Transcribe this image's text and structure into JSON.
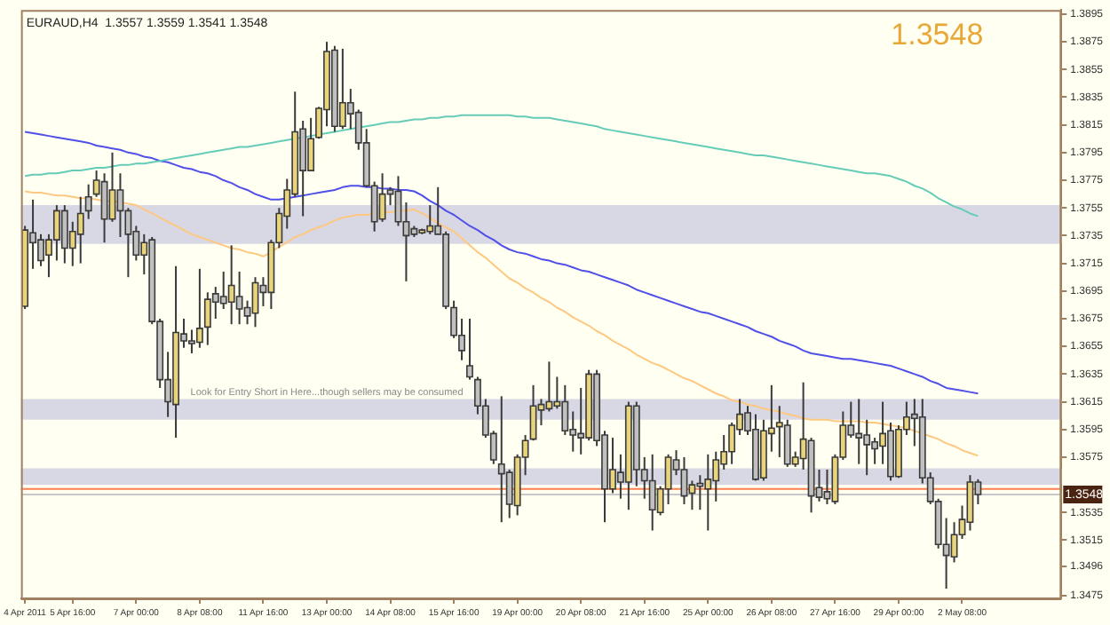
{
  "chart_data": {
    "type": "candlestick",
    "title": "EURAUD,H4  1.3557 1.3559 1.3541 1.3548",
    "categories": [
      "4 Apr 2011",
      null,
      null,
      null,
      null,
      null,
      "5 Apr 16:00",
      null,
      null,
      null,
      null,
      null,
      null,
      null,
      "7 Apr 00:00",
      null,
      null,
      null,
      null,
      null,
      null,
      null,
      "8 Apr 08:00",
      null,
      null,
      null,
      null,
      null,
      null,
      null,
      "11 Apr 16:00",
      null,
      null,
      null,
      null,
      null,
      null,
      null,
      "13 Apr 00:00",
      null,
      null,
      null,
      null,
      null,
      null,
      null,
      "14 Apr 08:00",
      null,
      null,
      null,
      null,
      null,
      null,
      null,
      "15 Apr 16:00",
      null,
      null,
      null,
      null,
      null,
      null,
      null,
      "19 Apr 00:00",
      null,
      null,
      null,
      null,
      null,
      null,
      null,
      "20 Apr 08:00",
      null,
      null,
      null,
      null,
      null,
      null,
      null,
      "21 Apr 16:00",
      null,
      null,
      null,
      null,
      null,
      null,
      null,
      "25 Apr 00:00",
      null,
      null,
      null,
      null,
      null,
      null,
      null,
      "26 Apr 08:00",
      null,
      null,
      null,
      null,
      null,
      null,
      null,
      "27 Apr 16:00",
      null,
      null,
      null,
      null,
      null,
      null,
      null,
      "29 Apr 00:00",
      null,
      null,
      null,
      null,
      null,
      null,
      null,
      "2 May 08:00",
      null,
      null
    ],
    "ohlc": [
      [
        1.3684,
        1.3742,
        1.3682,
        1.3739
      ],
      [
        1.3737,
        1.3761,
        1.3711,
        1.373
      ],
      [
        1.3732,
        1.3736,
        1.3713,
        1.3717
      ],
      [
        1.3721,
        1.3736,
        1.3705,
        1.3732
      ],
      [
        1.3732,
        1.3757,
        1.3717,
        1.3753
      ],
      [
        1.3753,
        1.3757,
        1.3715,
        1.3726
      ],
      [
        1.3726,
        1.3745,
        1.3713,
        1.3738
      ],
      [
        1.3736,
        1.3763,
        1.3715,
        1.3751
      ],
      [
        1.3763,
        1.3772,
        1.3747,
        1.3753
      ],
      [
        1.3765,
        1.3782,
        1.3763,
        1.3775
      ],
      [
        1.3774,
        1.378,
        1.373,
        1.3747
      ],
      [
        1.3747,
        1.3795,
        1.3745,
        1.3768
      ],
      [
        1.3768,
        1.378,
        1.3734,
        1.3753
      ],
      [
        1.3753,
        1.3755,
        1.3705,
        1.3736
      ],
      [
        1.3738,
        1.3742,
        1.3717,
        1.3721
      ],
      [
        1.3721,
        1.3736,
        1.3707,
        1.373
      ],
      [
        1.3732,
        1.3734,
        1.3671,
        1.3673
      ],
      [
        1.3673,
        1.3675,
        1.3625,
        1.3631
      ],
      [
        1.3631,
        1.3651,
        1.3604,
        1.3615
      ],
      [
        1.3613,
        1.3713,
        1.3589,
        1.3665
      ],
      [
        1.3664,
        1.3675,
        1.3654,
        1.3659
      ],
      [
        1.3659,
        1.3667,
        1.365,
        1.3657
      ],
      [
        1.3658,
        1.3711,
        1.3654,
        1.3668
      ],
      [
        1.3669,
        1.3694,
        1.3656,
        1.3689
      ],
      [
        1.3693,
        1.3698,
        1.3675,
        1.3687
      ],
      [
        1.3691,
        1.3709,
        1.3682,
        1.3686
      ],
      [
        1.3687,
        1.3728,
        1.3671,
        1.3699
      ],
      [
        1.3691,
        1.3709,
        1.3671,
        1.3682
      ],
      [
        1.3683,
        1.3688,
        1.3671,
        1.3677
      ],
      [
        1.3679,
        1.3705,
        1.3669,
        1.3701
      ],
      [
        1.3699,
        1.3705,
        1.3684,
        1.3694
      ],
      [
        1.3694,
        1.3732,
        1.3682,
        1.373
      ],
      [
        1.373,
        1.3755,
        1.3726,
        1.3751
      ],
      [
        1.3749,
        1.3776,
        1.374,
        1.3768
      ],
      [
        1.3765,
        1.3839,
        1.3763,
        1.381
      ],
      [
        1.3812,
        1.3818,
        1.3749,
        1.3782
      ],
      [
        1.3782,
        1.382,
        1.3782,
        1.3805
      ],
      [
        1.3806,
        1.3828,
        1.3805,
        1.3827
      ],
      [
        1.3826,
        1.3875,
        1.3814,
        1.3868
      ],
      [
        1.3869,
        1.3872,
        1.381,
        1.3814
      ],
      [
        1.3814,
        1.387,
        1.3812,
        1.3831
      ],
      [
        1.3831,
        1.3841,
        1.3812,
        1.3823
      ],
      [
        1.3824,
        1.3826,
        1.3797,
        1.3802
      ],
      [
        1.3802,
        1.3812,
        1.377,
        1.3771
      ],
      [
        1.3771,
        1.3774,
        1.3738,
        1.3745
      ],
      [
        1.3747,
        1.378,
        1.3745,
        1.3765
      ],
      [
        1.3768,
        1.377,
        1.3757,
        1.3765
      ],
      [
        1.3767,
        1.3778,
        1.3742,
        1.3745
      ],
      [
        1.3745,
        1.3759,
        1.3702,
        1.3735
      ],
      [
        1.374,
        1.3742,
        1.3734,
        1.3736
      ],
      [
        1.3737,
        1.374,
        1.3736,
        1.3739
      ],
      [
        1.3738,
        1.3757,
        1.3736,
        1.3742
      ],
      [
        1.3742,
        1.377,
        1.3736,
        1.3736
      ],
      [
        1.3736,
        1.3738,
        1.3682,
        1.3684
      ],
      [
        1.3683,
        1.3688,
        1.3661,
        1.3663
      ],
      [
        1.3663,
        1.3675,
        1.3645,
        1.3652
      ],
      [
        1.3641,
        1.3675,
        1.3631,
        1.3633
      ],
      [
        1.3631,
        1.3633,
        1.3606,
        1.3612
      ],
      [
        1.3612,
        1.3617,
        1.3589,
        1.3591
      ],
      [
        1.3592,
        1.3594,
        1.357,
        1.3573
      ],
      [
        1.357,
        1.3619,
        1.3528,
        1.3563
      ],
      [
        1.3564,
        1.3566,
        1.3531,
        1.3541
      ],
      [
        1.354,
        1.3577,
        1.3533,
        1.3575
      ],
      [
        1.3575,
        1.3591,
        1.3562,
        1.3587
      ],
      [
        1.3588,
        1.3627,
        1.3587,
        1.3612
      ],
      [
        1.3609,
        1.3617,
        1.3598,
        1.3613
      ],
      [
        1.361,
        1.3644,
        1.3608,
        1.3615
      ],
      [
        1.3612,
        1.3633,
        1.361,
        1.3615
      ],
      [
        1.3615,
        1.3627,
        1.3591,
        1.3594
      ],
      [
        1.3595,
        1.3608,
        1.3579,
        1.3591
      ],
      [
        1.3592,
        1.3625,
        1.3577,
        1.3589
      ],
      [
        1.3589,
        1.3638,
        1.3587,
        1.3635
      ],
      [
        1.3635,
        1.3638,
        1.3583,
        1.3587
      ],
      [
        1.3591,
        1.3594,
        1.3528,
        1.3552
      ],
      [
        1.3552,
        1.3589,
        1.3549,
        1.3566
      ],
      [
        1.3564,
        1.3577,
        1.3545,
        1.3557
      ],
      [
        1.3557,
        1.3615,
        1.3537,
        1.3612
      ],
      [
        1.3612,
        1.3615,
        1.3554,
        1.3566
      ],
      [
        1.3566,
        1.3575,
        1.3545,
        1.3558
      ],
      [
        1.3558,
        1.3577,
        1.3522,
        1.3537
      ],
      [
        1.3535,
        1.3554,
        1.3533,
        1.3552
      ],
      [
        1.3552,
        1.3577,
        1.3541,
        1.3575
      ],
      [
        1.3573,
        1.358,
        1.3562,
        1.3566
      ],
      [
        1.3566,
        1.3575,
        1.3541,
        1.3547
      ],
      [
        1.3549,
        1.3558,
        1.3537,
        1.3555
      ],
      [
        1.3556,
        1.3562,
        1.3537,
        1.3554
      ],
      [
        1.3552,
        1.3577,
        1.3522,
        1.3559
      ],
      [
        1.3558,
        1.3579,
        1.3543,
        1.3573
      ],
      [
        1.357,
        1.3591,
        1.3566,
        1.3579
      ],
      [
        1.3579,
        1.36,
        1.357,
        1.3598
      ],
      [
        1.3595,
        1.3617,
        1.3591,
        1.3606
      ],
      [
        1.3607,
        1.3612,
        1.3591,
        1.3594
      ],
      [
        1.3595,
        1.3606,
        1.3558,
        1.3559
      ],
      [
        1.356,
        1.3602,
        1.3558,
        1.3594
      ],
      [
        1.3592,
        1.3627,
        1.3579,
        1.3596
      ],
      [
        1.3597,
        1.3612,
        1.3575,
        1.36
      ],
      [
        1.3598,
        1.3602,
        1.3568,
        1.357
      ],
      [
        1.357,
        1.3579,
        1.3568,
        1.3575
      ],
      [
        1.3574,
        1.3629,
        1.3566,
        1.3588
      ],
      [
        1.3587,
        1.3589,
        1.3535,
        1.3547
      ],
      [
        1.3553,
        1.3566,
        1.3543,
        1.3546
      ],
      [
        1.355,
        1.3566,
        1.3541,
        1.3545
      ],
      [
        1.3543,
        1.3577,
        1.3541,
        1.3575
      ],
      [
        1.3575,
        1.3608,
        1.3573,
        1.3598
      ],
      [
        1.3598,
        1.3615,
        1.3589,
        1.3591
      ],
      [
        1.3592,
        1.3617,
        1.357,
        1.3589
      ],
      [
        1.3591,
        1.3602,
        1.3562,
        1.3584
      ],
      [
        1.3586,
        1.3589,
        1.357,
        1.3581
      ],
      [
        1.3583,
        1.3615,
        1.357,
        1.3592
      ],
      [
        1.3594,
        1.36,
        1.3558,
        1.3561
      ],
      [
        1.3561,
        1.3598,
        1.356,
        1.3595
      ],
      [
        1.3595,
        1.3615,
        1.3591,
        1.3604
      ],
      [
        1.3606,
        1.3617,
        1.3583,
        1.3603
      ],
      [
        1.3604,
        1.3617,
        1.3556,
        1.356
      ],
      [
        1.356,
        1.3564,
        1.3541,
        1.3543
      ],
      [
        1.3543,
        1.3545,
        1.3509,
        1.3512
      ],
      [
        1.3512,
        1.3531,
        1.348,
        1.3504
      ],
      [
        1.3503,
        1.3528,
        1.3499,
        1.3519
      ],
      [
        1.3519,
        1.354,
        1.3516,
        1.353
      ],
      [
        1.3528,
        1.3562,
        1.3522,
        1.3557
      ],
      [
        1.3557,
        1.3559,
        1.3541,
        1.3548
      ]
    ],
    "series": [
      {
        "type": "line",
        "color": "#66ccb8",
        "values": [
          1.3778,
          1.3779,
          1.3779,
          1.378,
          1.378,
          1.3781,
          1.3782,
          1.3782,
          1.3783,
          1.3784,
          1.3784,
          1.3785,
          1.3786,
          1.3786,
          1.3787,
          1.3787,
          1.3788,
          1.3789,
          1.379,
          1.3791,
          1.3792,
          1.3793,
          1.3794,
          1.3795,
          1.3796,
          1.3797,
          1.3798,
          1.3799,
          1.3799,
          1.38,
          1.3801,
          1.3802,
          1.3803,
          1.3804,
          1.3805,
          1.3806,
          1.3807,
          1.3808,
          1.3809,
          1.381,
          1.3811,
          1.3812,
          1.3813,
          1.3814,
          1.3815,
          1.3816,
          1.3817,
          1.3817,
          1.3818,
          1.3819,
          1.3819,
          1.382,
          1.382,
          1.3821,
          1.3821,
          1.3822,
          1.3822,
          1.3822,
          1.3822,
          1.3822,
          1.3822,
          1.3822,
          1.3821,
          1.3821,
          1.382,
          1.382,
          1.382,
          1.3819,
          1.3818,
          1.3817,
          1.3816,
          1.3815,
          1.3814,
          1.3812,
          1.3811,
          1.381,
          1.3809,
          1.3808,
          1.3807,
          1.3806,
          1.3805,
          1.3804,
          1.3803,
          1.3802,
          1.3801,
          1.38,
          1.3799,
          1.3798,
          1.3797,
          1.3796,
          1.3795,
          1.3794,
          1.3793,
          1.3793,
          1.3792,
          1.3791,
          1.379,
          1.3789,
          1.3788,
          1.3787,
          1.3786,
          1.3785,
          1.3784,
          1.3783,
          1.3782,
          1.3781,
          1.378,
          1.378,
          1.3779,
          1.3778,
          1.3776,
          1.3774,
          1.3771,
          1.3769,
          1.3766,
          1.3762,
          1.3759,
          1.3756,
          1.3754,
          1.3751,
          1.3749
        ]
      },
      {
        "type": "line",
        "color": "#5050e8",
        "values": [
          1.381,
          1.3809,
          1.3808,
          1.3807,
          1.3806,
          1.3805,
          1.3804,
          1.3803,
          1.3802,
          1.38,
          1.3799,
          1.3798,
          1.3797,
          1.3795,
          1.3794,
          1.3792,
          1.3791,
          1.3789,
          1.3788,
          1.3786,
          1.3784,
          1.3783,
          1.3781,
          1.378,
          1.3778,
          1.3775,
          1.3773,
          1.377,
          1.3768,
          1.3765,
          1.3763,
          1.3761,
          1.3761,
          1.3762,
          1.3763,
          1.3764,
          1.3765,
          1.3766,
          1.3767,
          1.3768,
          1.377,
          1.3771,
          1.3771,
          1.377,
          1.377,
          1.3769,
          1.3769,
          1.3768,
          1.3768,
          1.3767,
          1.3764,
          1.376,
          1.3757,
          1.3753,
          1.375,
          1.3746,
          1.3742,
          1.3739,
          1.3735,
          1.3732,
          1.3728,
          1.3725,
          1.3723,
          1.3722,
          1.372,
          1.3718,
          1.3717,
          1.3715,
          1.3714,
          1.3712,
          1.371,
          1.3709,
          1.3707,
          1.3705,
          1.3703,
          1.3701,
          1.3699,
          1.3696,
          1.3694,
          1.3692,
          1.369,
          1.3688,
          1.3686,
          1.3684,
          1.3682,
          1.368,
          1.3679,
          1.3677,
          1.3675,
          1.3673,
          1.3671,
          1.3669,
          1.3666,
          1.3664,
          1.3662,
          1.3659,
          1.3657,
          1.3655,
          1.3652,
          1.365,
          1.3649,
          1.3648,
          1.3647,
          1.3646,
          1.3646,
          1.3645,
          1.3644,
          1.3643,
          1.3642,
          1.3641,
          1.3639,
          1.3637,
          1.3635,
          1.3633,
          1.363,
          1.3628,
          1.3625,
          1.3624,
          1.3623,
          1.3622,
          1.3621
        ]
      },
      {
        "type": "line",
        "color": "#ffc880",
        "values": [
          1.3767,
          1.3766,
          1.3766,
          1.3765,
          1.3764,
          1.3764,
          1.3763,
          1.3762,
          1.3762,
          1.3761,
          1.376,
          1.376,
          1.3759,
          1.3758,
          1.3757,
          1.3754,
          1.3751,
          1.3748,
          1.3745,
          1.3742,
          1.3739,
          1.3736,
          1.3734,
          1.3732,
          1.373,
          1.3728,
          1.3726,
          1.3725,
          1.3723,
          1.3722,
          1.372,
          1.3723,
          1.3727,
          1.373,
          1.3734,
          1.3736,
          1.3739,
          1.3741,
          1.3743,
          1.3746,
          1.3748,
          1.3749,
          1.375,
          1.375,
          1.3751,
          1.3752,
          1.3752,
          1.3753,
          1.3753,
          1.3754,
          1.3751,
          1.3748,
          1.3744,
          1.3741,
          1.3738,
          1.3733,
          1.3728,
          1.3723,
          1.3719,
          1.3714,
          1.3709,
          1.3704,
          1.3701,
          1.3697,
          1.3694,
          1.369,
          1.3687,
          1.3683,
          1.368,
          1.3676,
          1.3673,
          1.367,
          1.3666,
          1.3663,
          1.3659,
          1.3656,
          1.3653,
          1.3649,
          1.3646,
          1.3643,
          1.3641,
          1.3638,
          1.3635,
          1.3632,
          1.363,
          1.3627,
          1.3624,
          1.3621,
          1.3619,
          1.3616,
          1.3615,
          1.3613,
          1.3612,
          1.361,
          1.3609,
          1.3608,
          1.3606,
          1.3605,
          1.3603,
          1.3602,
          1.3602,
          1.3602,
          1.3601,
          1.3601,
          1.3601,
          1.3601,
          1.36,
          1.36,
          1.3599,
          1.3598,
          1.3597,
          1.3596,
          1.3594,
          1.3592,
          1.359,
          1.3588,
          1.3585,
          1.3583,
          1.358,
          1.3578,
          1.3576
        ]
      }
    ],
    "ylim": [
      1.3473,
      1.3898
    ],
    "yticks": [
      1.3895,
      1.3875,
      1.3855,
      1.3835,
      1.3815,
      1.3795,
      1.3775,
      1.3755,
      1.3735,
      1.3715,
      1.3695,
      1.3675,
      1.3655,
      1.3635,
      1.3615,
      1.3595,
      1.3575,
      1.3535,
      1.3515,
      1.3496,
      1.3475
    ],
    "bands": [
      {
        "axis": "y",
        "from": 1.3729,
        "to": 1.3757,
        "color": "#d8d8e4"
      },
      {
        "axis": "y",
        "from": 1.3602,
        "to": 1.3617,
        "label": "Look for Entry Short in Here...though sellers may be consumed",
        "color": "#d8d8e4"
      },
      {
        "axis": "y",
        "from": 1.3555,
        "to": 1.3567,
        "color": "#d8d8e4"
      }
    ],
    "ref_lines": [
      {
        "axis": "y",
        "value": 1.3552,
        "color": "#ff8050"
      },
      {
        "axis": "y",
        "value": 1.3548,
        "label": "1.3548",
        "color": "#c8c8c8"
      }
    ],
    "annotations": [
      "1.3548"
    ]
  }
}
